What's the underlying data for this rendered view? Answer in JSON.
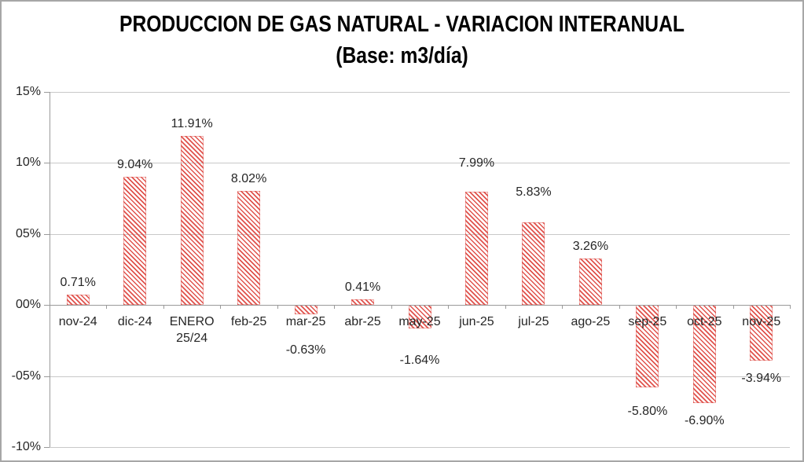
{
  "title": {
    "line1": "PRODUCCION DE GAS NATURAL - VARIACION INTERANUAL",
    "line2": "(Base: m3/día)"
  },
  "chart_data": {
    "type": "bar",
    "title": "PRODUCCION DE GAS NATURAL - VARIACION INTERANUAL (Base: m3/día)",
    "xlabel": "",
    "ylabel": "",
    "categories": [
      "nov-24",
      "dic-24",
      "ENERO\n25/24",
      "feb-25",
      "mar-25",
      "abr-25",
      "may-25",
      "jun-25",
      "jul-25",
      "ago-25",
      "sep-25",
      "oct-25",
      "nov-25"
    ],
    "values": [
      0.71,
      9.04,
      11.91,
      8.02,
      -0.63,
      0.41,
      -1.64,
      7.99,
      5.83,
      3.26,
      -5.8,
      -6.9,
      -3.94
    ],
    "data_labels": [
      "0.71%",
      "9.04%",
      "11.91%",
      "8.02%",
      "-0.63%",
      "0.41%",
      "-1.64%",
      "7.99%",
      "5.83%",
      "3.26%",
      "-5.80%",
      "-6.90%",
      "-3.94%"
    ],
    "ylim": [
      -10,
      15
    ],
    "yticks": [
      {
        "value": 15,
        "label": "15%"
      },
      {
        "value": 10,
        "label": "10%"
      },
      {
        "value": 5,
        "label": "05%"
      },
      {
        "value": 0,
        "label": "00%"
      },
      {
        "value": -5,
        "label": "-05%"
      },
      {
        "value": -10,
        "label": "-10%"
      }
    ],
    "grid": true,
    "legend": false,
    "bar_fill": "diagonal-hatch",
    "bar_color": "#e0524c",
    "grid_color": "#c9c9c9",
    "axis_color": "#9a9a9a",
    "label_color": "#262626",
    "label_y_adjust": [
      0,
      0,
      0,
      0,
      0,
      0,
      13,
      -21,
      -23,
      0,
      8,
      0,
      0
    ]
  }
}
